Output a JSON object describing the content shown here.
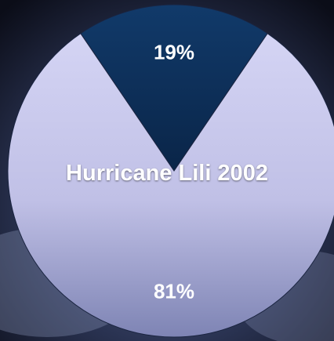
{
  "chart_data": {
    "type": "pie",
    "title": "Hurricane Lili 2002",
    "categories": [
      "",
      ""
    ],
    "values": [
      19,
      81
    ],
    "labels": [
      "19%",
      "81%"
    ],
    "colors": [
      "#0f3563",
      "#c8c8ec"
    ]
  }
}
